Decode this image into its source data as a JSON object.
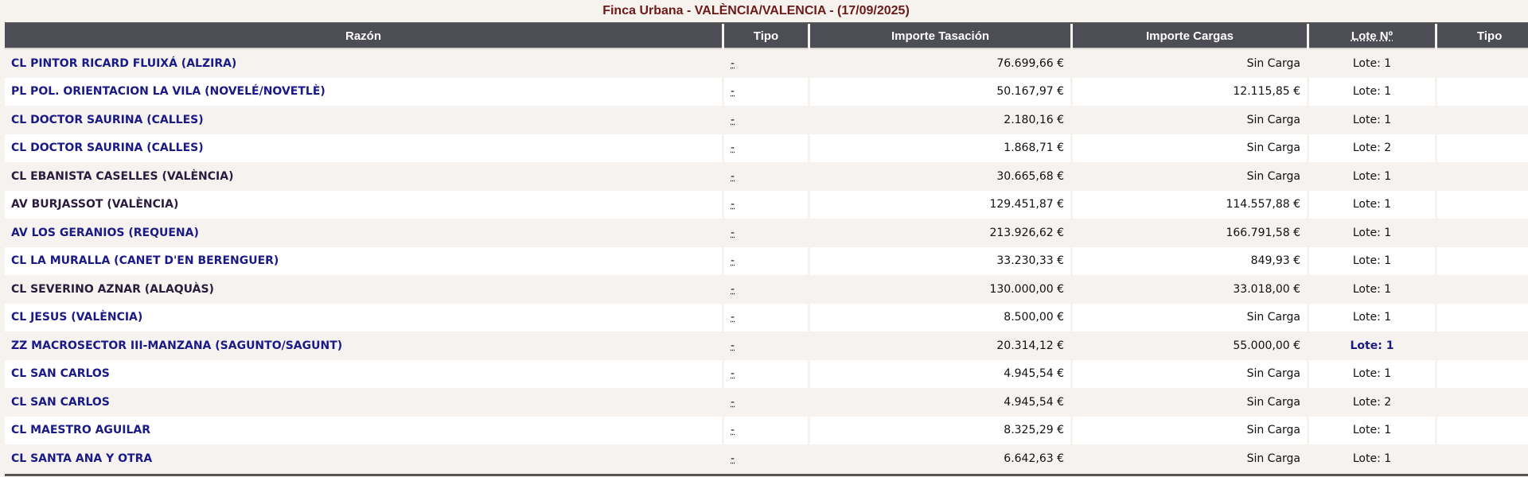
{
  "title": "Finca Urbana - VALÈNCIA/VALENCIA - (17/09/2025)",
  "columns": [
    "Razón",
    "Tipo",
    "Importe Tasación",
    "Importe Cargas",
    "Lote Nº",
    "Tipo"
  ],
  "rows": [
    {
      "razon": "CL PINTOR RICARD FLUIXÁ (ALZIRA)",
      "tipo": "-",
      "tasacion": "76.699,66 €",
      "cargas": "Sin Carga",
      "lote": "Lote: 1",
      "visited": false,
      "bold_lote": false
    },
    {
      "razon": "PL POL. ORIENTACION LA VILA (NOVELÉ/NOVETLÈ)",
      "tipo": "-",
      "tasacion": "50.167,97 €",
      "cargas": "12.115,85 €",
      "lote": "Lote: 1",
      "visited": false,
      "bold_lote": false
    },
    {
      "razon": "CL DOCTOR SAURINA (CALLES)",
      "tipo": "-",
      "tasacion": "2.180,16 €",
      "cargas": "Sin Carga",
      "lote": "Lote: 1",
      "visited": false,
      "bold_lote": false
    },
    {
      "razon": "CL DOCTOR SAURINA (CALLES)",
      "tipo": "-",
      "tasacion": "1.868,71 €",
      "cargas": "Sin Carga",
      "lote": "Lote: 2",
      "visited": false,
      "bold_lote": false
    },
    {
      "razon": "CL EBANISTA CASELLES (VALÈNCIA)",
      "tipo": "-",
      "tasacion": "30.665,68 €",
      "cargas": "Sin Carga",
      "lote": "Lote: 1",
      "visited": true,
      "bold_lote": false
    },
    {
      "razon": "AV BURJASSOT (VALÈNCIA)",
      "tipo": "-",
      "tasacion": "129.451,87 €",
      "cargas": "114.557,88 €",
      "lote": "Lote: 1",
      "visited": true,
      "bold_lote": false
    },
    {
      "razon": "AV LOS GERANIOS (REQUENA)",
      "tipo": "-",
      "tasacion": "213.926,62 €",
      "cargas": "166.791,58 €",
      "lote": "Lote: 1",
      "visited": false,
      "bold_lote": false
    },
    {
      "razon": "CL LA MURALLA (CANET D'EN BERENGUER)",
      "tipo": "-",
      "tasacion": "33.230,33 €",
      "cargas": "849,93 €",
      "lote": "Lote: 1",
      "visited": false,
      "bold_lote": false
    },
    {
      "razon": "CL SEVERINO AZNAR (ALAQUÀS)",
      "tipo": "-",
      "tasacion": "130.000,00 €",
      "cargas": "33.018,00 €",
      "lote": "Lote: 1",
      "visited": true,
      "bold_lote": false
    },
    {
      "razon": "CL JESUS (VALÈNCIA)",
      "tipo": "-",
      "tasacion": "8.500,00 €",
      "cargas": "Sin Carga",
      "lote": "Lote: 1",
      "visited": false,
      "bold_lote": false
    },
    {
      "razon": "ZZ MACROSECTOR III-MANZANA (SAGUNTO/SAGUNT)",
      "tipo": "-",
      "tasacion": "20.314,12 €",
      "cargas": "55.000,00 €",
      "lote": "Lote: 1",
      "visited": false,
      "bold_lote": true
    },
    {
      "razon": "CL SAN CARLOS",
      "tipo": "-",
      "tasacion": "4.945,54 €",
      "cargas": "Sin Carga",
      "lote": "Lote: 1",
      "visited": false,
      "bold_lote": false
    },
    {
      "razon": "CL SAN CARLOS",
      "tipo": "-",
      "tasacion": "4.945,54 €",
      "cargas": "Sin Carga",
      "lote": "Lote: 2",
      "visited": false,
      "bold_lote": false
    },
    {
      "razon": "CL MAESTRO AGUILAR",
      "tipo": "-",
      "tasacion": "8.325,29 €",
      "cargas": "Sin Carga",
      "lote": "Lote: 1",
      "visited": false,
      "bold_lote": false
    },
    {
      "razon": "CL SANTA ANA Y OTRA",
      "tipo": "-",
      "tasacion": "6.642,63 €",
      "cargas": "Sin Carga",
      "lote": "Lote: 1",
      "visited": false,
      "bold_lote": false
    }
  ],
  "colors": {
    "header_bg": "#4d4d55",
    "title": "#6b1a1a",
    "link": "#1a1a86",
    "visited_link": "#2b1b3d",
    "row_alt": "#f5f2ef"
  }
}
